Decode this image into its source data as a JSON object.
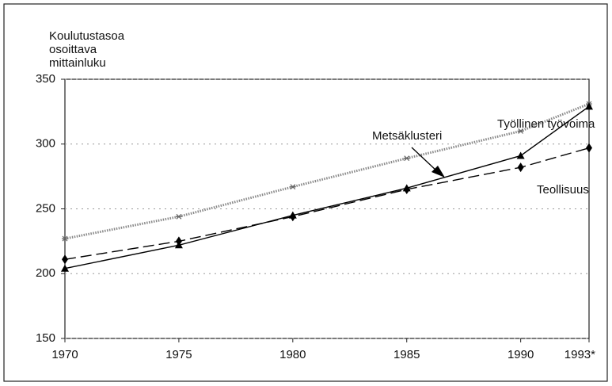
{
  "chart_data": {
    "type": "line",
    "ylabel": [
      "Koulutustasoa",
      "osoittava",
      "mittainluku"
    ],
    "x": [
      1970,
      1975,
      1980,
      1985,
      1990,
      1993
    ],
    "series": [
      {
        "name": "Työllinen työvoima",
        "color": "#888888",
        "dash": "dotted",
        "marker": "star",
        "values": [
          227,
          244,
          267,
          289,
          310,
          331
        ]
      },
      {
        "name": "Metsäklusteri",
        "color": "#000000",
        "dash": "solid",
        "marker": "triangle",
        "values": [
          204,
          222,
          245,
          266,
          291,
          329
        ]
      },
      {
        "name": "Teollisuus",
        "color": "#000000",
        "dash": "dashed",
        "marker": "diamond",
        "values": [
          211,
          225,
          244,
          265,
          282,
          297
        ]
      }
    ],
    "xlim": [
      1970,
      1993
    ],
    "xticks": [
      1970,
      1975,
      1980,
      1985,
      1990,
      {
        "value": 1993,
        "label": "1993*"
      }
    ],
    "ylim": [
      150,
      350
    ],
    "yticks": [
      150,
      200,
      250,
      300,
      350
    ],
    "grid": true
  }
}
